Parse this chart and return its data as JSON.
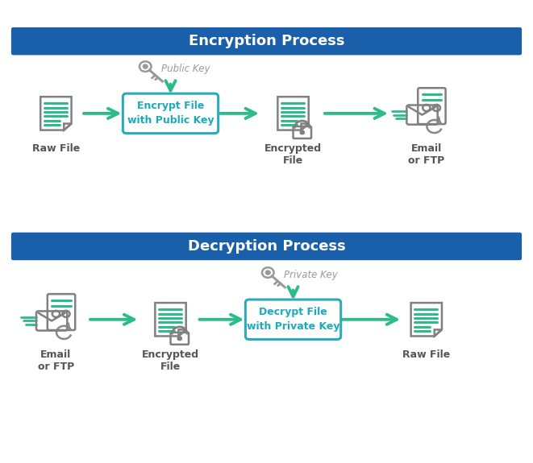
{
  "bg_color": "#ffffff",
  "title_bg_color": "#1a5faa",
  "title_text_color": "#ffffff",
  "icon_color": "#808080",
  "green_color": "#2dbb8a",
  "box_border_color": "#2aaabb",
  "box_bg_color": "#ffffff",
  "box_text_color": "#1aaabb",
  "label_color": "#555555",
  "key_color": "#999999",
  "refresh_color": "#888888",
  "enc_title": "Encryption Process",
  "dec_title": "Decryption Process",
  "enc_box_text": "Encrypt File\nwith Public Key",
  "dec_box_text": "Decrypt File\nwith Private Key",
  "enc_labels": [
    "Raw File",
    "Encrypted\nFile",
    "Email\nor FTP"
  ],
  "dec_labels": [
    "Email\nor FTP",
    "Encrypted\nFile",
    "Raw File"
  ],
  "public_key_label": "Public Key",
  "private_key_label": "Private Key"
}
